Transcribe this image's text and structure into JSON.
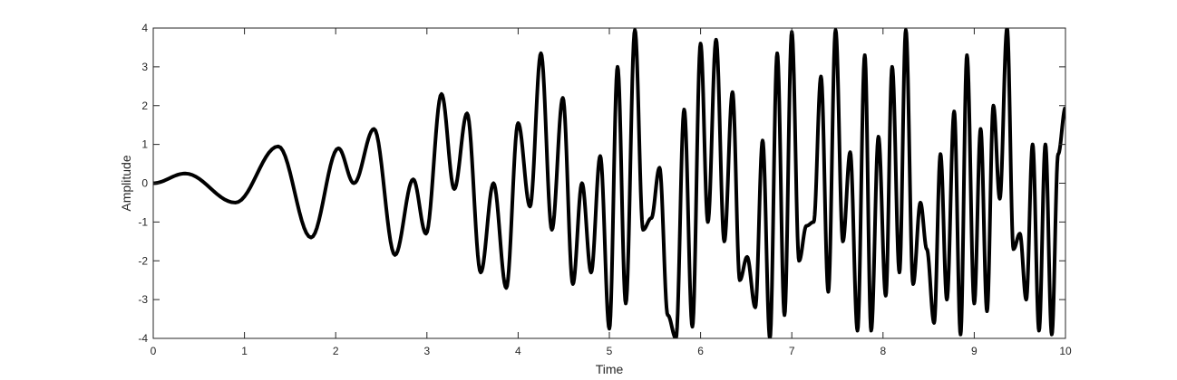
{
  "chart_data": {
    "type": "line",
    "title": "",
    "xlabel": "Time",
    "ylabel": "Amplitude",
    "xlim": [
      0,
      10
    ],
    "ylim": [
      -4,
      4
    ],
    "grid": false,
    "box": true,
    "line_color": "#000000",
    "x_ticks": [
      "0",
      "1",
      "2",
      "3",
      "4",
      "5",
      "6",
      "7",
      "8",
      "9",
      "10"
    ],
    "y_ticks": [
      "-4",
      "-3",
      "-2",
      "-1",
      "0",
      "1",
      "2",
      "3",
      "4"
    ],
    "series": [
      {
        "x": [
          0,
          0.35,
          0.9,
          1.37,
          1.73,
          2.03,
          2.2,
          2.42,
          2.65,
          2.85,
          2.99,
          3.16,
          3.3,
          3.44,
          3.59,
          3.73,
          3.87,
          4.0,
          4.13,
          4.25,
          4.37,
          4.49,
          4.6,
          4.7,
          4.8,
          4.9,
          5.0,
          5.09,
          5.18,
          5.28,
          5.37,
          5.46,
          5.55,
          5.64,
          5.73,
          5.82,
          5.91,
          6.0,
          6.08,
          6.17,
          6.26,
          6.35,
          6.43,
          6.51,
          6.6,
          6.68,
          6.76,
          6.84,
          6.92,
          7.0,
          7.08,
          7.16,
          7.24,
          7.32,
          7.4,
          7.48,
          7.56,
          7.64,
          7.72,
          7.8,
          7.87,
          7.95,
          8.03,
          8.1,
          8.18,
          8.25,
          8.33,
          8.41,
          8.48,
          8.56,
          8.63,
          8.7,
          8.78,
          8.85,
          8.92,
          9.0,
          9.07,
          9.14,
          9.21,
          9.28,
          9.36,
          9.43,
          9.5,
          9.57,
          9.64,
          9.71,
          9.78,
          9.85,
          9.92,
          10.0
        ],
        "y": [
          0,
          0.25,
          -0.5,
          0.95,
          -1.4,
          0.9,
          0.0,
          1.4,
          -1.85,
          0.1,
          -1.3,
          2.3,
          -0.15,
          1.8,
          -2.3,
          0.0,
          -2.7,
          1.55,
          -0.6,
          3.35,
          -1.2,
          2.2,
          -2.6,
          0.0,
          -2.3,
          0.7,
          -3.75,
          3.0,
          -3.1,
          3.95,
          -1.2,
          -0.9,
          0.4,
          -3.4,
          -4.0,
          1.9,
          -3.7,
          3.6,
          -1.0,
          3.7,
          -1.5,
          2.35,
          -2.5,
          -1.9,
          -3.2,
          1.1,
          -4.0,
          3.35,
          -3.4,
          3.9,
          -2.0,
          -1.1,
          -1.0,
          2.75,
          -2.8,
          3.95,
          -1.5,
          0.8,
          -3.8,
          3.3,
          -3.8,
          1.2,
          -2.9,
          3.0,
          -2.3,
          3.95,
          -2.6,
          -0.5,
          -1.7,
          -3.6,
          0.75,
          -3.0,
          1.85,
          -3.9,
          3.3,
          -3.1,
          1.4,
          -3.3,
          2.0,
          -0.4,
          4.0,
          -1.7,
          -1.3,
          -3.0,
          1.0,
          -3.8,
          1.0,
          -3.9,
          0.75,
          1.95
        ]
      }
    ]
  }
}
